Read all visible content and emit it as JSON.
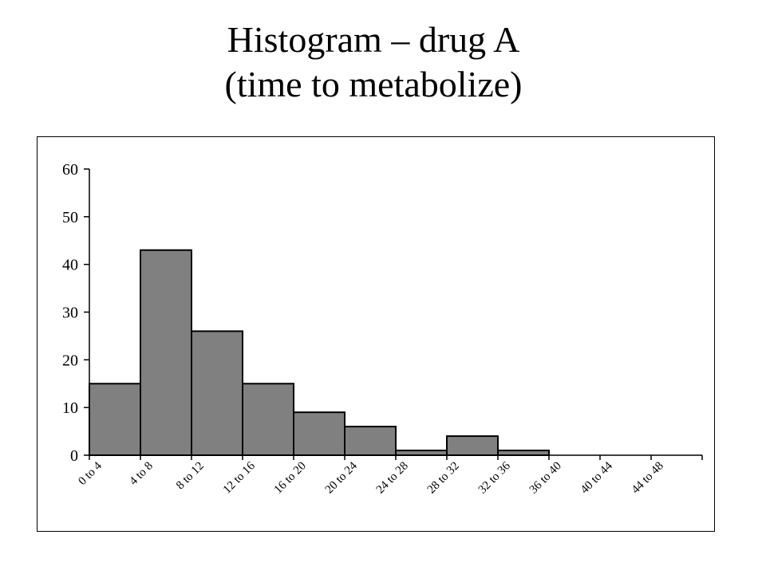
{
  "title_line1": "Histogram – drug A",
  "title_line2": "(time to metabolize)",
  "chart_data": {
    "type": "bar",
    "title": "Histogram – drug A (time to metabolize)",
    "categories": [
      "0 to 4",
      "4 to 8",
      "8 to 12",
      "12 to 16",
      "16 to 20",
      "20 to 24",
      "24 to 28",
      "28 to 32",
      "32 to 36",
      "36 to 40",
      "40 to 44",
      "44 to 48"
    ],
    "values": [
      15,
      43,
      26,
      15,
      9,
      6,
      1,
      4,
      1,
      0,
      0,
      0
    ],
    "ylim": [
      0,
      60
    ],
    "yticks": [
      0,
      10,
      20,
      30,
      40,
      50,
      60
    ],
    "xlabel": "",
    "ylabel": "",
    "grid": false,
    "legend": "none",
    "bar_color": "#808080"
  }
}
